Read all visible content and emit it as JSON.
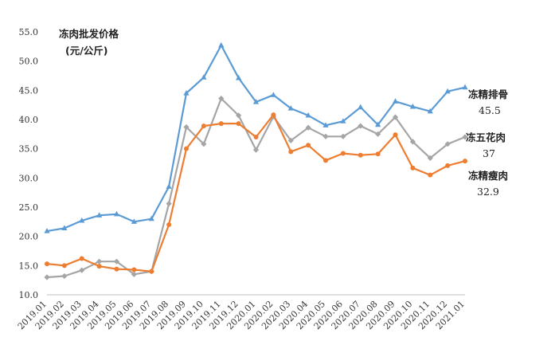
{
  "chart_data": {
    "type": "line",
    "title": "冻肉批发价格",
    "unit": "(元/公斤)",
    "xlabel": "",
    "ylabel": "",
    "ylim": [
      10.0,
      55.0
    ],
    "yticks": [
      "10.0",
      "15.0",
      "20.0",
      "25.0",
      "30.0",
      "35.0",
      "40.0",
      "45.0",
      "50.0",
      "55.0"
    ],
    "categories": [
      "2019.01",
      "2019.02",
      "2019.03",
      "2019.04",
      "2019.05",
      "2019.06",
      "2019.07",
      "2019.08",
      "2019.09",
      "2019.10",
      "2019.11",
      "2019.12",
      "2020.01",
      "2020.02",
      "2020.03",
      "2020.04",
      "2020.05",
      "2020.06",
      "2020.07",
      "2020.08",
      "2020.09",
      "2020.10",
      "2020.11",
      "2020.12",
      "2021.01"
    ],
    "grid": false,
    "legend": "none",
    "series": [
      {
        "name": "冻精排骨",
        "end_label": "45.5",
        "color": "#5B9BD5",
        "marker": "triangle",
        "values": [
          20.9,
          21.4,
          22.7,
          23.6,
          23.8,
          22.5,
          23.0,
          28.5,
          44.5,
          47.2,
          52.7,
          47.1,
          43.0,
          44.2,
          41.9,
          40.7,
          39.0,
          39.7,
          42.1,
          39.1,
          43.1,
          42.2,
          41.4,
          44.8,
          45.5
        ]
      },
      {
        "name": "冻五花肉",
        "end_label": "37",
        "color": "#A5A5A5",
        "marker": "diamond",
        "values": [
          13.0,
          13.2,
          14.2,
          15.7,
          15.7,
          13.5,
          14.0,
          25.6,
          38.7,
          35.8,
          43.6,
          40.7,
          34.8,
          40.5,
          36.4,
          38.6,
          37.1,
          37.1,
          38.9,
          37.5,
          40.4,
          36.2,
          33.4,
          35.8,
          37.0
        ]
      },
      {
        "name": "冻精瘦肉",
        "end_label": "32.9",
        "color": "#ED7D31",
        "marker": "circle",
        "values": [
          15.3,
          15.0,
          16.2,
          14.9,
          14.4,
          14.3,
          14.0,
          22.0,
          35.0,
          38.9,
          39.3,
          39.3,
          37.0,
          40.8,
          34.5,
          35.6,
          33.0,
          34.2,
          33.9,
          34.1,
          37.4,
          31.7,
          30.5,
          32.1,
          32.9
        ]
      }
    ]
  }
}
